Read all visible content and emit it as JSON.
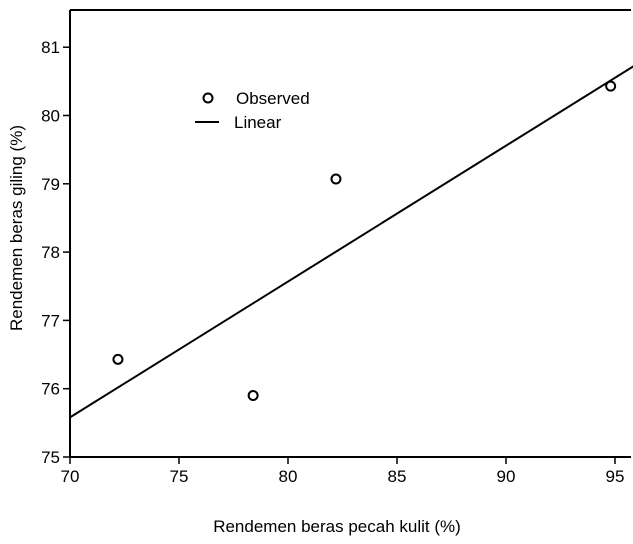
{
  "chart_data": {
    "type": "scatter",
    "title": "",
    "xlabel": "Rendemen beras pecah kulit (%)",
    "ylabel": "Rendemen beras giling (%)",
    "xlim": [
      70,
      96.5
    ],
    "ylim": [
      75,
      81.3
    ],
    "x_ticks": [
      70,
      75,
      80,
      85,
      90,
      95
    ],
    "y_ticks": [
      75,
      76,
      77,
      78,
      79,
      80,
      81
    ],
    "grid": false,
    "legend_position": "top-left",
    "series": [
      {
        "name": "Observed",
        "type": "scatter",
        "marker": "open-circle",
        "points": [
          {
            "x": 72.2,
            "y": 76.43
          },
          {
            "x": 78.4,
            "y": 75.9
          },
          {
            "x": 82.2,
            "y": 79.07
          },
          {
            "x": 94.8,
            "y": 80.43
          }
        ]
      },
      {
        "name": "Linear",
        "type": "line",
        "points": [
          {
            "x": 70,
            "y": 75.58
          },
          {
            "x": 96.5,
            "y": 80.85
          }
        ]
      }
    ]
  }
}
